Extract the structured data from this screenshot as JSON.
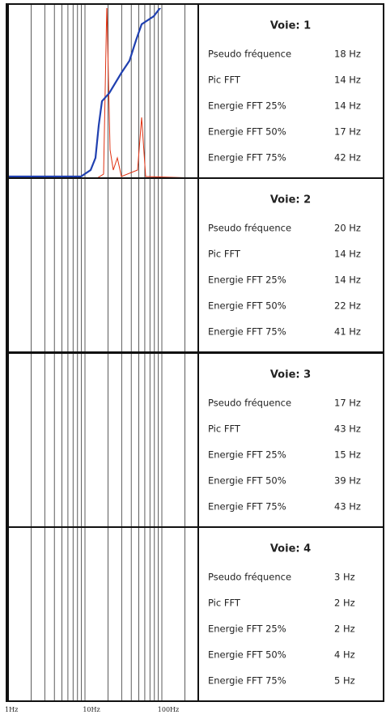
{
  "panels": [
    {
      "title": "Voie: 1",
      "rows": [
        [
          "Pseudo fréquence",
          "18 Hz"
        ],
        [
          "Pic FFT",
          "14 Hz"
        ],
        [
          "Energie FFT 25%",
          "14 Hz"
        ],
        [
          "Energie FFT 50%",
          "17 Hz"
        ],
        [
          "Energie FFT 75%",
          "42 Hz"
        ]
      ]
    },
    {
      "title": "Voie: 2",
      "rows": [
        [
          "Pseudo fréquence",
          "20 Hz"
        ],
        [
          "Pic FFT",
          "14 Hz"
        ],
        [
          "Energie FFT 25%",
          "14 Hz"
        ],
        [
          "Energie FFT 50%",
          "22 Hz"
        ],
        [
          "Energie FFT 75%",
          "41 Hz"
        ]
      ]
    },
    {
      "title": "Voie: 3",
      "rows": [
        [
          "Pseudo fréquence",
          "17 Hz"
        ],
        [
          "Pic FFT",
          "43 Hz"
        ],
        [
          "Energie FFT 25%",
          "15 Hz"
        ],
        [
          "Energie FFT 50%",
          "39 Hz"
        ],
        [
          "Energie FFT 75%",
          "43 Hz"
        ]
      ]
    },
    {
      "title": "Voie: 4",
      "rows": [
        [
          "Pseudo fréquence",
          "3 Hz"
        ],
        [
          "Pic FFT",
          "2 Hz"
        ],
        [
          "Energie FFT 25%",
          "2 Hz"
        ],
        [
          "Energie FFT 50%",
          "4 Hz"
        ],
        [
          "Energie FFT 75%",
          "5 Hz"
        ]
      ]
    }
  ],
  "axis_labels": [
    "1Hz",
    "10Hz",
    "100Hz"
  ]
}
